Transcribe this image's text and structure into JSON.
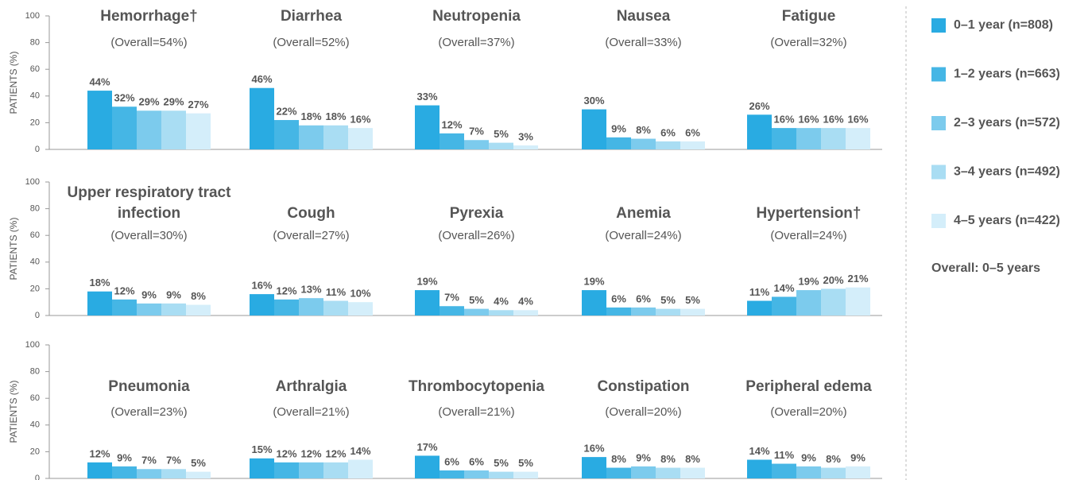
{
  "chart_data": {
    "type": "bar",
    "ylabel": "PATIENTS (%)",
    "ylim": [
      0,
      100
    ],
    "yticks": [
      0,
      20,
      40,
      60,
      80,
      100
    ],
    "panels": [
      {
        "title": "Hemorrhage†",
        "subtitle": "(Overall=54%)"
      },
      {
        "title": "Diarrhea",
        "subtitle": "(Overall=52%)"
      },
      {
        "title": "Neutropenia",
        "subtitle": "(Overall=37%)"
      },
      {
        "title": "Nausea",
        "subtitle": "(Overall=33%)"
      },
      {
        "title": "Fatigue",
        "subtitle": "(Overall=32%)"
      },
      {
        "title": "Upper respiratory tract infection",
        "subtitle": "(Overall=30%)"
      },
      {
        "title": "Cough",
        "subtitle": "(Overall=27%)"
      },
      {
        "title": "Pyrexia",
        "subtitle": "(Overall=26%)"
      },
      {
        "title": "Anemia",
        "subtitle": "(Overall=24%)"
      },
      {
        "title": "Hypertension†",
        "subtitle": "(Overall=24%)"
      },
      {
        "title": "Pneumonia",
        "subtitle": "(Overall=23%)"
      },
      {
        "title": "Arthralgia",
        "subtitle": "(Overall=21%)"
      },
      {
        "title": "Thrombocytopenia",
        "subtitle": "(Overall=21%)"
      },
      {
        "title": "Constipation",
        "subtitle": "(Overall=20%)"
      },
      {
        "title": "Peripheral edema",
        "subtitle": "(Overall=20%)"
      }
    ],
    "series": [
      {
        "name": "0–1 year (n=808)",
        "color": "#29abe2",
        "values": [
          44,
          46,
          33,
          30,
          26,
          18,
          16,
          19,
          19,
          11,
          12,
          15,
          17,
          16,
          14
        ],
        "value_labels": [
          "44%",
          "46%",
          "33%",
          "30%",
          "26%",
          "18%",
          "16%",
          "19%",
          "19%",
          "11%",
          "12%",
          "15%",
          "17%",
          "16%",
          "14%"
        ]
      },
      {
        "name": "1–2 years (n=663)",
        "color": "#45b6e5",
        "values": [
          32,
          22,
          12,
          9,
          16,
          12,
          12,
          7,
          6,
          14,
          9,
          12,
          6,
          8,
          11
        ],
        "value_labels": [
          "32%",
          "22%",
          "12%",
          "9%",
          "16%",
          "12%",
          "12%",
          "7%",
          "6%",
          "14%",
          "9%",
          "12%",
          "6%",
          "8%",
          "11%"
        ]
      },
      {
        "name": "2–3 years (n=572)",
        "color": "#7ccbed",
        "values": [
          29,
          18,
          7,
          8,
          16,
          9,
          13,
          5,
          6,
          19,
          7,
          12,
          6,
          9,
          9
        ],
        "value_labels": [
          "29%",
          "18%",
          "7%",
          "8%",
          "16%",
          "9%",
          "13%",
          "5%",
          "6%",
          "19%",
          "7%",
          "12%",
          "6%",
          "9%",
          "9%"
        ]
      },
      {
        "name": "3–4 years (n=492)",
        "color": "#a9ddf3",
        "values": [
          29,
          18,
          5,
          6,
          16,
          9,
          11,
          4,
          5,
          20,
          7,
          12,
          5,
          8,
          8
        ],
        "value_labels": [
          "29%",
          "18%",
          "5%",
          "6%",
          "16%",
          "9%",
          "11%",
          "4%",
          "5%",
          "20%",
          "7%",
          "12%",
          "5%",
          "8%",
          "8%"
        ]
      },
      {
        "name": "4–5 years (n=422)",
        "color": "#d4eefa",
        "values": [
          27,
          16,
          3,
          6,
          16,
          8,
          10,
          4,
          5,
          21,
          5,
          14,
          5,
          8,
          9
        ],
        "value_labels": [
          "27%",
          "16%",
          "3%",
          "6%",
          "16%",
          "8%",
          "10%",
          "4%",
          "5%",
          "21%",
          "5%",
          "14%",
          "5%",
          "8%",
          "9%"
        ]
      }
    ],
    "legend_note": "Overall: 0–5 years"
  }
}
